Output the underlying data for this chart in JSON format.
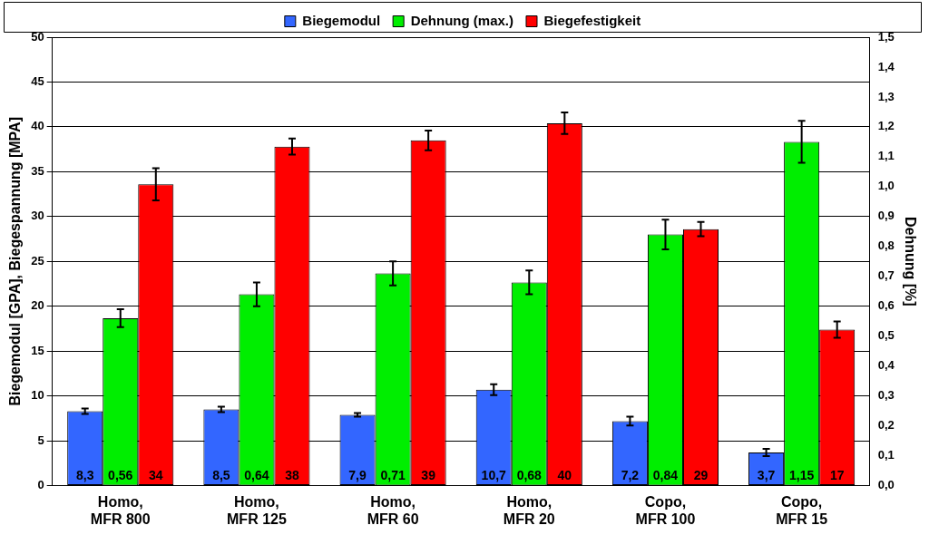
{
  "chart_data": {
    "type": "bar",
    "ylabel": "Biegemodul [GPA], Biegespannung [MPA]",
    "y2label": "Dehnung [%]",
    "categories": [
      "Homo, MFR 800",
      "Homo, MFR 125",
      "Homo, MFR 60",
      "Homo, MFR 20",
      "Copo, MFR 100",
      "Copo, MFR 15"
    ],
    "series": [
      {
        "name": "Biegemodul",
        "color": "#3366ff",
        "values": [
          8.3,
          8.5,
          7.9,
          10.7,
          7.2,
          3.7
        ],
        "errors": [
          0.3,
          0.3,
          0.2,
          0.6,
          0.5,
          0.4
        ],
        "value_labels": [
          "8,3",
          "8,5",
          "7,9",
          "10,7",
          "7,2",
          "3,7"
        ]
      },
      {
        "name": "Dehnung (max.)",
        "color": "#00ee00",
        "axis": "y2",
        "values": [
          0.56,
          0.64,
          0.71,
          0.68,
          0.84,
          1.15
        ],
        "errors": [
          0.03,
          0.04,
          0.04,
          0.04,
          0.05,
          0.07
        ],
        "value_labels": [
          "0,56",
          "0,64",
          "0,71",
          "0,68",
          "0,84",
          "1,15"
        ]
      },
      {
        "name": "Biegefestigkeit",
        "color": "#ff0000",
        "values": [
          33.6,
          37.8,
          38.5,
          40.4,
          28.6,
          17.4
        ],
        "errors": [
          1.8,
          0.9,
          1.1,
          1.2,
          0.8,
          0.9
        ],
        "value_labels": [
          "34",
          "38",
          "39",
          "40",
          "29",
          "17"
        ]
      }
    ],
    "ylim": [
      0,
      50
    ],
    "yticks": [
      0,
      5,
      10,
      15,
      20,
      25,
      30,
      35,
      40,
      45,
      50
    ],
    "y2lim": [
      0,
      1.5
    ],
    "y2ticks": [
      {
        "value": 0,
        "label": "0,0"
      },
      {
        "value": 0.1,
        "label": "0,1"
      },
      {
        "value": 0.2,
        "label": "0,2"
      },
      {
        "value": 0.3,
        "label": "0,3"
      },
      {
        "value": 0.4,
        "label": "0,4"
      },
      {
        "value": 0.5,
        "label": "0,5"
      },
      {
        "value": 0.6,
        "label": "0,6"
      },
      {
        "value": 0.7,
        "label": "0,7"
      },
      {
        "value": 0.8,
        "label": "0,8"
      },
      {
        "value": 0.9,
        "label": "0,9"
      },
      {
        "value": 1,
        "label": "1,0"
      },
      {
        "value": 1.1,
        "label": "1,1"
      },
      {
        "value": 1.2,
        "label": "1,2"
      },
      {
        "value": 1.3,
        "label": "1,3"
      },
      {
        "value": 1.4,
        "label": "1,4"
      },
      {
        "value": 1.5,
        "label": "1,5"
      }
    ],
    "grid": "y",
    "legend": "top"
  }
}
